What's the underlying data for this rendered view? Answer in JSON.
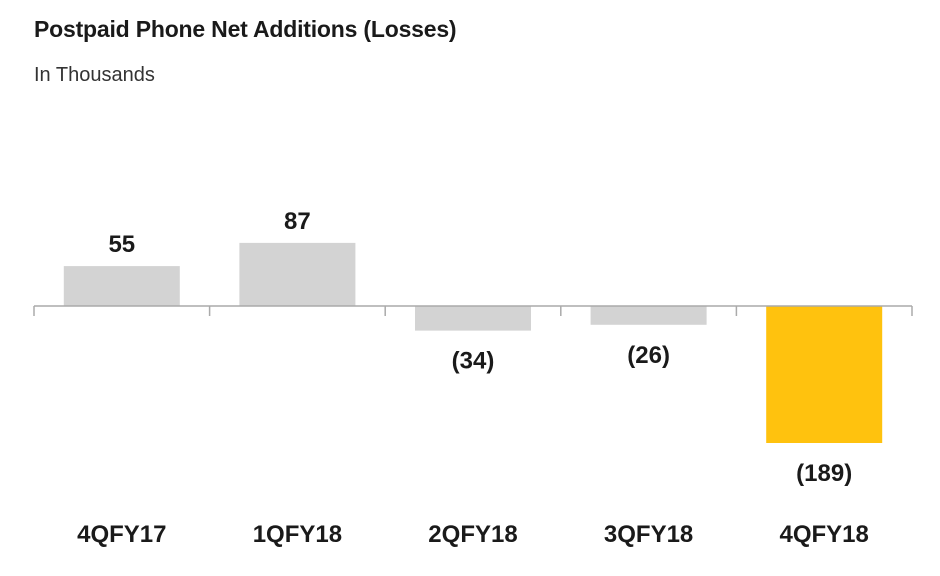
{
  "chart_data": {
    "type": "bar",
    "title": "Postpaid Phone Net Additions (Losses)",
    "subtitle": "In Thousands",
    "categories": [
      "4QFY17",
      "1QFY18",
      "2QFY18",
      "3QFY18",
      "4QFY18"
    ],
    "values": [
      55,
      87,
      -34,
      -26,
      -189
    ],
    "value_labels": [
      "55",
      "87",
      "(34)",
      "(26)",
      "(189)"
    ],
    "xlabel": "",
    "ylabel": "",
    "grid": false,
    "legend": "none"
  },
  "colors": {
    "bar_default": "#d3d3d3",
    "bar_highlight": "#ffc20e",
    "axis": "#aaaaaa"
  },
  "highlight_index": 4
}
